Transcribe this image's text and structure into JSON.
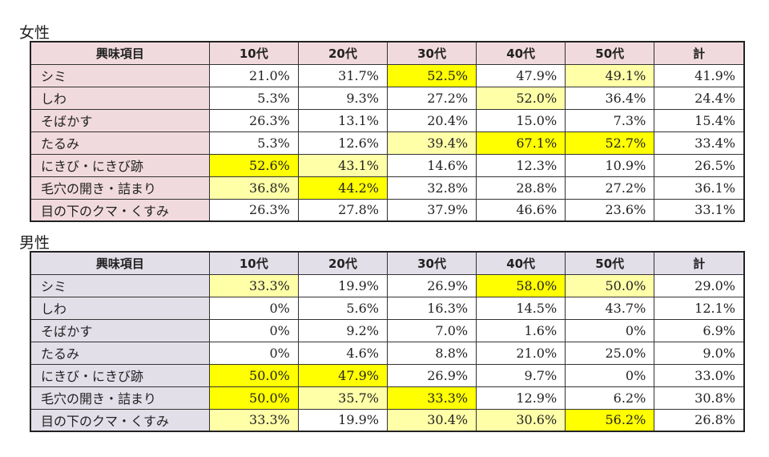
{
  "colors": {
    "female_header_bg": "#f1dadd",
    "male_header_bg": "#e3dfe9",
    "highlight_strong": "#ffff00",
    "highlight_light": "#ffffa8"
  },
  "columns": [
    "興味項目",
    "10代",
    "20代",
    "30代",
    "40代",
    "50代",
    "計"
  ],
  "female": {
    "title": "女性",
    "rows": [
      {
        "label": "シミ",
        "values": [
          "21.0%",
          "31.7%",
          "52.5%",
          "47.9%",
          "49.1%",
          "41.9%"
        ],
        "hl": [
          "",
          "",
          "strong",
          "",
          "light",
          ""
        ]
      },
      {
        "label": "しわ",
        "values": [
          "5.3%",
          "9.3%",
          "27.2%",
          "52.0%",
          "36.4%",
          "24.4%"
        ],
        "hl": [
          "",
          "",
          "",
          "light",
          "",
          ""
        ]
      },
      {
        "label": "そばかす",
        "values": [
          "26.3%",
          "13.1%",
          "20.4%",
          "15.0%",
          "7.3%",
          "15.4%"
        ],
        "hl": [
          "",
          "",
          "",
          "",
          "",
          ""
        ]
      },
      {
        "label": "たるみ",
        "values": [
          "5.3%",
          "12.6%",
          "39.4%",
          "67.1%",
          "52.7%",
          "33.4%"
        ],
        "hl": [
          "",
          "",
          "light",
          "strong",
          "strong",
          ""
        ]
      },
      {
        "label": "にきび・にきび跡",
        "values": [
          "52.6%",
          "43.1%",
          "14.6%",
          "12.3%",
          "10.9%",
          "26.5%"
        ],
        "hl": [
          "strong",
          "light",
          "",
          "",
          "",
          ""
        ]
      },
      {
        "label": "毛穴の開き・詰まり",
        "values": [
          "36.8%",
          "44.2%",
          "32.8%",
          "28.8%",
          "27.2%",
          "36.1%"
        ],
        "hl": [
          "light",
          "strong",
          "",
          "",
          "",
          ""
        ]
      },
      {
        "label": "目の下のクマ・くすみ",
        "values": [
          "26.3%",
          "27.8%",
          "37.9%",
          "46.6%",
          "23.6%",
          "33.1%"
        ],
        "hl": [
          "",
          "",
          "",
          "",
          "",
          ""
        ]
      }
    ]
  },
  "male": {
    "title": "男性",
    "rows": [
      {
        "label": "シミ",
        "values": [
          "33.3%",
          "19.9%",
          "26.9%",
          "58.0%",
          "50.0%",
          "29.0%"
        ],
        "hl": [
          "light",
          "",
          "",
          "strong",
          "light",
          ""
        ]
      },
      {
        "label": "しわ",
        "values": [
          "0%",
          "5.6%",
          "16.3%",
          "14.5%",
          "43.7%",
          "12.1%"
        ],
        "hl": [
          "",
          "",
          "",
          "",
          "",
          ""
        ]
      },
      {
        "label": "そばかす",
        "values": [
          "0%",
          "9.2%",
          "7.0%",
          "1.6%",
          "0%",
          "6.9%"
        ],
        "hl": [
          "",
          "",
          "",
          "",
          "",
          ""
        ]
      },
      {
        "label": "たるみ",
        "values": [
          "0%",
          "4.6%",
          "8.8%",
          "21.0%",
          "25.0%",
          "9.0%"
        ],
        "hl": [
          "",
          "",
          "",
          "",
          "",
          ""
        ]
      },
      {
        "label": "にきび・にきび跡",
        "values": [
          "50.0%",
          "47.9%",
          "26.9%",
          "9.7%",
          "0%",
          "33.0%"
        ],
        "hl": [
          "strong",
          "strong",
          "",
          "",
          "",
          ""
        ]
      },
      {
        "label": "毛穴の開き・詰まり",
        "values": [
          "50.0%",
          "35.7%",
          "33.3%",
          "12.9%",
          "6.2%",
          "30.8%"
        ],
        "hl": [
          "strong",
          "light",
          "strong",
          "",
          "",
          ""
        ]
      },
      {
        "label": "目の下のクマ・くすみ",
        "values": [
          "33.3%",
          "19.9%",
          "30.4%",
          "30.6%",
          "56.2%",
          "26.8%"
        ],
        "hl": [
          "light",
          "",
          "light",
          "light",
          "strong",
          ""
        ]
      }
    ]
  }
}
